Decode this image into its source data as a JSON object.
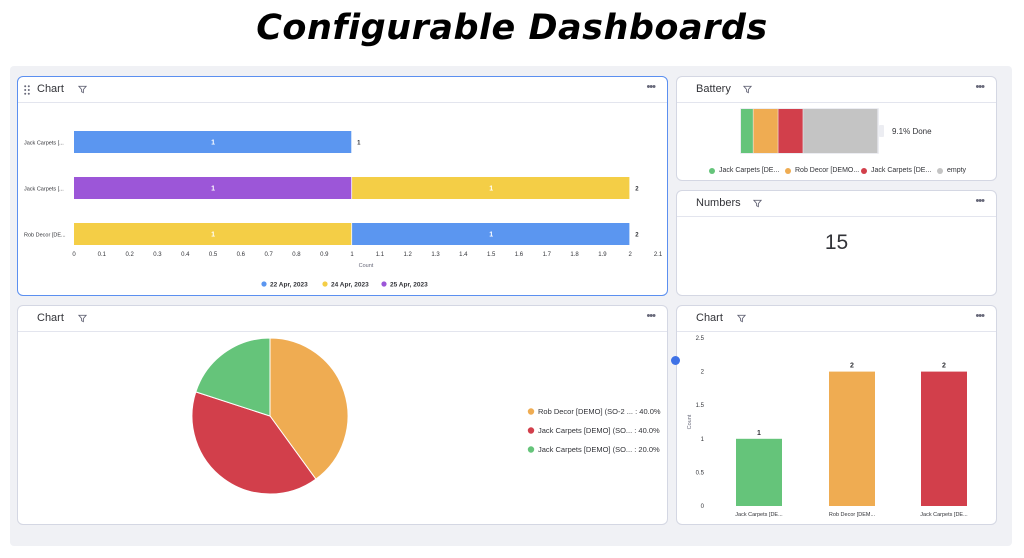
{
  "page": {
    "title": "Configurable Dashboards"
  },
  "colors": {
    "blue": "#5b96f0",
    "yellow": "#f4ce46",
    "purple": "#9c56d8",
    "green": "#65c47a",
    "orange": "#efac52",
    "red": "#d23f4b",
    "gray": "#c4c4c4"
  },
  "widgets": {
    "bar_chart": {
      "title": "Chart",
      "filter_icon": "filter-icon",
      "more_icon": "more-icon",
      "drag_icon": "drag-handle-icon"
    },
    "battery": {
      "title": "Battery",
      "done_label": "9.1% Done",
      "legend": [
        {
          "label": "Jack Carpets [DE...",
          "color": "#65c47a"
        },
        {
          "label": "Rob Decor [DEMO...",
          "color": "#efac52"
        },
        {
          "label": "Jack Carpets [DE...",
          "color": "#d23f4b"
        },
        {
          "label": "empty",
          "color": "#c4c4c4"
        }
      ]
    },
    "numbers": {
      "title": "Numbers",
      "value": "15"
    },
    "pie_chart": {
      "title": "Chart"
    },
    "column_chart": {
      "title": "Chart"
    }
  },
  "chart_data": [
    {
      "type": "bar",
      "orientation": "horizontal",
      "stacked": true,
      "categories": [
        "Jack Carpets [...",
        "Jack Carpets [...",
        "Rob Decor [DE..."
      ],
      "series": [
        {
          "name": "22 Apr, 2023",
          "color": "#5b96f0"
        },
        {
          "name": "24 Apr, 2023",
          "color": "#f4ce46"
        },
        {
          "name": "25 Apr, 2023",
          "color": "#9c56d8"
        }
      ],
      "segments": [
        [
          {
            "series": 0,
            "value": 1
          }
        ],
        [
          {
            "series": 2,
            "value": 1
          },
          {
            "series": 1,
            "value": 1
          }
        ],
        [
          {
            "series": 1,
            "value": 1
          },
          {
            "series": 0,
            "value": 1
          }
        ]
      ],
      "totals": [
        1,
        2,
        2
      ],
      "xlabel": "Count",
      "xticks": [
        "0",
        "0.1",
        "0.2",
        "0.3",
        "0.4",
        "0.5",
        "0.6",
        "0.7",
        "0.8",
        "0.9",
        "1",
        "1.1",
        "1.2",
        "1.3",
        "1.4",
        "1.5",
        "1.6",
        "1.7",
        "1.8",
        "1.9",
        "2",
        "2.1"
      ],
      "xlim": [
        0,
        2.1
      ],
      "legend_position": "bottom"
    },
    {
      "type": "bar",
      "orientation": "horizontal",
      "stacked": true,
      "title": "",
      "categories": [
        "Battery"
      ],
      "series": [
        {
          "name": "Jack Carpets [DE...",
          "value": 1,
          "color": "#65c47a"
        },
        {
          "name": "Rob Decor [DEMO...",
          "value": 2,
          "color": "#efac52"
        },
        {
          "name": "Jack Carpets [DE...",
          "value": 2,
          "color": "#d23f4b"
        },
        {
          "name": "empty",
          "value": 6,
          "color": "#c4c4c4"
        }
      ],
      "legend_position": "bottom"
    },
    {
      "type": "pie",
      "slices": [
        {
          "label": "Rob Decor [DEMO] (SO-2 ... : 40.0%",
          "value": 40.0,
          "color": "#efac52"
        },
        {
          "label": "Jack Carpets [DEMO] (SO... : 40.0%",
          "value": 40.0,
          "color": "#d23f4b"
        },
        {
          "label": "Jack Carpets [DEMO] (SO... : 20.0%",
          "value": 20.0,
          "color": "#65c47a"
        }
      ],
      "legend_position": "right"
    },
    {
      "type": "bar",
      "categories": [
        "Jack Carpets [DE...",
        "Rob Decor [DEM...",
        "Jack Carpets [DE..."
      ],
      "values": [
        1,
        2,
        2
      ],
      "value_labels": [
        "1",
        "2",
        "2"
      ],
      "colors": [
        "#65c47a",
        "#efac52",
        "#d23f4b"
      ],
      "ylabel": "Count",
      "yticks": [
        "0",
        "0.5",
        "1",
        "1.5",
        "2",
        "2.5"
      ],
      "ylim": [
        0,
        2.5
      ]
    }
  ]
}
